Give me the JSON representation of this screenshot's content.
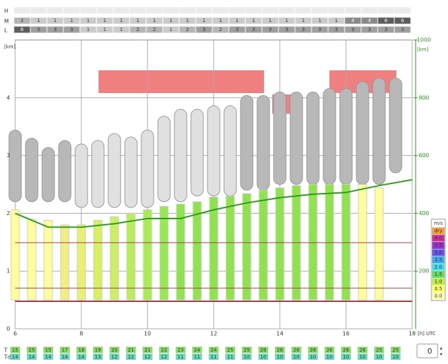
{
  "chart_data": {
    "type": "meteogram",
    "labels": {
      "h": "H",
      "m": "M",
      "l": "L",
      "t": "T",
      "td": "Td",
      "ykm": "[km]",
      "y2km": "[km]",
      "xunit": "[h] UTC"
    },
    "x": [
      6,
      6.5,
      7,
      7.5,
      8,
      8.5,
      9,
      9.5,
      10,
      10.5,
      11,
      11.5,
      12,
      12.5,
      13,
      13.5,
      14,
      14.5,
      15,
      15.5,
      16,
      16.5,
      17,
      17.5
    ],
    "xlim": [
      6,
      18
    ],
    "xticks": [
      6,
      8,
      10,
      12,
      14,
      16,
      18
    ],
    "ylim": [
      0,
      5
    ],
    "yticks": [
      0,
      1,
      2,
      3,
      4
    ],
    "y2lim": [
      0,
      1000
    ],
    "y2ticks": [
      200,
      400,
      600,
      800,
      1000
    ],
    "cloud_layers": [
      {
        "name": "H",
        "values": [
          null,
          null,
          null,
          null,
          null,
          null,
          null,
          null,
          null,
          null,
          null,
          null,
          null,
          null,
          null,
          null,
          null,
          null,
          null,
          null,
          null,
          null,
          null,
          null
        ]
      },
      {
        "name": "M",
        "values": [
          2,
          1,
          1,
          1,
          1,
          1,
          1,
          1,
          1,
          1,
          1,
          1,
          1,
          1,
          1,
          1,
          1,
          1,
          1,
          1,
          4,
          4,
          6,
          6
        ]
      },
      {
        "name": "L",
        "values": [
          6,
          3,
          3,
          3,
          1,
          1,
          1,
          2,
          2,
          1,
          2,
          3,
          2,
          3,
          3,
          3,
          3,
          3,
          3,
          3,
          3,
          3,
          3,
          3
        ]
      }
    ],
    "thermal_base": 0.5,
    "thermals": [
      2.06,
      1.9,
      1.88,
      1.8,
      1.8,
      1.88,
      1.94,
      2.0,
      2.06,
      2.12,
      2.16,
      2.2,
      2.28,
      2.3,
      2.34,
      2.4,
      2.44,
      2.48,
      2.5,
      2.5,
      2.5,
      2.5,
      2.44,
      null
    ],
    "bar_colors": [
      "#ffff99",
      "#ffff99",
      "#ffff99",
      "#f0f080",
      "#e8f070",
      "#d8f060",
      "#c8f060",
      "#b8ee58",
      "#a8ec50",
      "#98e850",
      "#8fe44c",
      "#8fe44c",
      "#8fe44c",
      "#8fe44c",
      "#8fe44c",
      "#8fe44c",
      "#8fe44c",
      "#8fe44c",
      "#8fe44c",
      "#8fe44c",
      "#8fe44c",
      "#ffff99",
      "#ffff99",
      "#ffff99"
    ],
    "cloud_base": [
      2.2,
      2.2,
      2.2,
      2.2,
      2.1,
      2.1,
      2.1,
      2.1,
      2.1,
      2.2,
      2.2,
      2.3,
      2.3,
      2.3,
      2.4,
      2.4,
      2.5,
      2.5,
      2.5,
      2.5,
      2.5,
      2.5,
      2.5,
      2.7
    ],
    "cloud_top": [
      3.44,
      3.3,
      3.14,
      3.26,
      3.2,
      3.26,
      3.38,
      3.32,
      3.44,
      3.68,
      3.8,
      3.8,
      3.86,
      3.86,
      4.04,
      4.04,
      4.1,
      4.1,
      4.1,
      4.16,
      4.16,
      4.28,
      4.34,
      4.34
    ],
    "cloudbase_line": {
      "x": [
        6,
        7,
        8,
        9,
        10,
        11,
        12,
        13,
        14,
        15,
        16,
        17,
        18
      ],
      "values": [
        2.0,
        1.76,
        1.76,
        1.82,
        1.91,
        1.91,
        2.06,
        2.18,
        2.27,
        2.33,
        2.36,
        2.48,
        2.58
      ],
      "color": "#2e9a1e"
    },
    "temperature": [
      15,
      15,
      15,
      17,
      18,
      19,
      20,
      21,
      21,
      22,
      23,
      24,
      24,
      25,
      25,
      26,
      26,
      26,
      26,
      26,
      26,
      26,
      25,
      25
    ],
    "dewpoint": [
      14,
      14,
      14,
      14,
      14,
      13,
      12,
      12,
      12,
      12,
      11,
      11,
      11,
      11,
      10,
      10,
      10,
      10,
      10,
      10,
      10,
      10,
      10,
      10
    ],
    "colorbar": {
      "title": "m/s",
      "labels": [
        "dry",
        "4.0",
        "3.5",
        "3.0",
        "2.5",
        "2.0",
        "1.5",
        "1.0",
        "0.5",
        "0.0"
      ],
      "colors": [
        "#f0a040",
        "#cc3399",
        "#9933cc",
        "#6655ee",
        "#44aaee",
        "#44ddee",
        "#66dd66",
        "#bbee44",
        "#ffff66",
        "#ffffaa"
      ]
    },
    "spinner_value": 0
  }
}
